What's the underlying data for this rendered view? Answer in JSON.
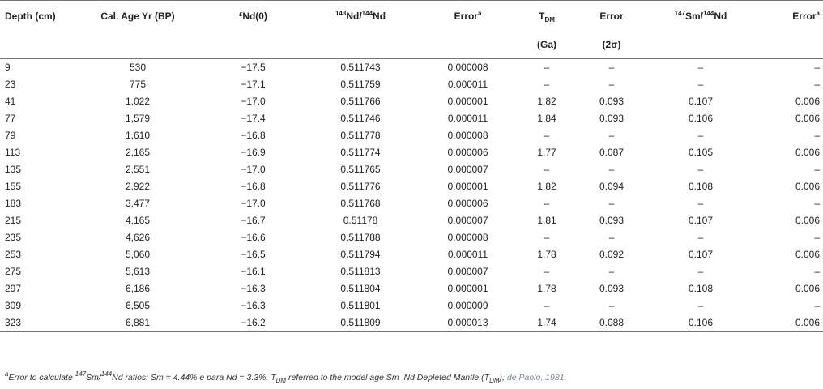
{
  "headers": {
    "depth": "Depth (cm)",
    "age": "Cal. Age Yr (BP)",
    "eps_sym": "ε",
    "eps_rest": "Nd(0)",
    "nd_sup1": "143",
    "nd_mid": "Nd/",
    "nd_sup2": "144",
    "nd_end": "Nd",
    "error": "Error",
    "error_sup": "a",
    "tdm_t": "T",
    "tdm_sub": "DM",
    "error2": "Error",
    "sm_sup1": "147",
    "sm_mid": "Sm/",
    "sm_sup2": "144",
    "sm_end": "Nd",
    "error3": "Error",
    "error3_sup": "a",
    "ga": "(Ga)",
    "sigma": "(2σ)"
  },
  "rows": [
    [
      "9",
      "530",
      "−17.5",
      "0.511743",
      "0.000008",
      "–",
      "–",
      "–",
      "–"
    ],
    [
      "23",
      "775",
      "−17.1",
      "0.511759",
      "0.000011",
      "–",
      "–",
      "–",
      "–"
    ],
    [
      "41",
      "1,022",
      "−17.0",
      "0.511766",
      "0.000001",
      "1.82",
      "0.093",
      "0.107",
      "0.006"
    ],
    [
      "77",
      "1,579",
      "−17.4",
      "0.511746",
      "0.000011",
      "1.84",
      "0.093",
      "0.106",
      "0.006"
    ],
    [
      "79",
      "1,610",
      "−16.8",
      "0.511778",
      "0.000008",
      "–",
      "–",
      "–",
      "–"
    ],
    [
      "113",
      "2,165",
      "−16.9",
      "0.511774",
      "0.000006",
      "1.77",
      "0.087",
      "0.105",
      "0.006"
    ],
    [
      "135",
      "2,551",
      "−17.0",
      "0.511765",
      "0.000007",
      "–",
      "–",
      "–",
      "–"
    ],
    [
      "155",
      "2,922",
      "−16.8",
      "0.511776",
      "0.000001",
      "1.82",
      "0.094",
      "0.108",
      "0.006"
    ],
    [
      "183",
      "3,477",
      "−17.0",
      "0.511768",
      "0.000006",
      "–",
      "–",
      "–",
      "–"
    ],
    [
      "215",
      "4,165",
      "−16.7",
      "0.51178",
      "0.000007",
      "1.81",
      "0.093",
      "0.107",
      "0.006"
    ],
    [
      "235",
      "4,626",
      "−16.6",
      "0.511788",
      "0.000008",
      "–",
      "–",
      "–",
      "–"
    ],
    [
      "253",
      "5,060",
      "−16.5",
      "0.511794",
      "0.000011",
      "1.78",
      "0.092",
      "0.107",
      "0.006"
    ],
    [
      "275",
      "5,613",
      "−16.1",
      "0.511813",
      "0.000007",
      "–",
      "–",
      "–",
      "–"
    ],
    [
      "297",
      "6,186",
      "−16.3",
      "0.511804",
      "0.000001",
      "1.78",
      "0.093",
      "0.108",
      "0.006"
    ],
    [
      "309",
      "6,505",
      "−16.3",
      "0.511801",
      "0.000009",
      "–",
      "–",
      "–",
      "–"
    ],
    [
      "323",
      "6,881",
      "−16.2",
      "0.511809",
      "0.000013",
      "1.74",
      "0.088",
      "0.106",
      "0.006"
    ]
  ],
  "footnote": {
    "marker": "a",
    "t1": "Error to calculate ",
    "sup1": "147",
    "t2": "Sm/",
    "sup2": "144",
    "t3": "Nd ratios: Sm = 4.44% e para Nd = 3.3%. T",
    "sub1": "DM",
    "t4": " referred to the model age Sm–Nd Depleted Mantle (T",
    "sub2": "DM",
    "t5": "), ",
    "link": "de Paolo, 1981",
    "t6": "."
  }
}
